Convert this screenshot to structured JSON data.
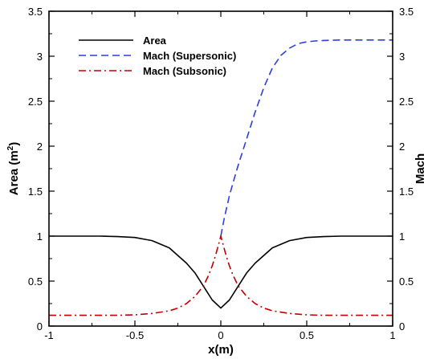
{
  "chart_data": {
    "type": "line",
    "xlabel": "x(m)",
    "ylabel_left": "Area (m",
    "ylabel_left_sup": "2",
    "ylabel_left_end": ")",
    "ylabel_right": "Mach",
    "xlim": [
      -1,
      1
    ],
    "ylim_left": [
      0,
      3.5
    ],
    "ylim_right": [
      0,
      3.5
    ],
    "x_ticks": [
      -1,
      -0.5,
      0,
      0.5,
      1
    ],
    "x_tick_labels": [
      "-1",
      "-0.5",
      "0",
      "0.5",
      "1"
    ],
    "y_ticks": [
      0,
      0.5,
      1,
      1.5,
      2,
      2.5,
      3,
      3.5
    ],
    "y_tick_labels": [
      "0",
      "0.5",
      "1",
      "1.5",
      "2",
      "2.5",
      "3",
      "3.5"
    ],
    "grid": false,
    "legend_position": "top-left",
    "series": [
      {
        "name": "Area",
        "axis": "left",
        "style": "solid",
        "color": "#000000",
        "x": [
          -1,
          -0.7,
          -0.6,
          -0.5,
          -0.4,
          -0.3,
          -0.2,
          -0.15,
          -0.1,
          -0.05,
          0,
          0.05,
          0.1,
          0.15,
          0.2,
          0.3,
          0.4,
          0.5,
          0.6,
          0.7,
          1
        ],
        "y": [
          1.0,
          1.0,
          0.995,
          0.985,
          0.95,
          0.87,
          0.7,
          0.59,
          0.44,
          0.29,
          0.2,
          0.29,
          0.44,
          0.59,
          0.7,
          0.87,
          0.95,
          0.985,
          0.995,
          1.0,
          1.0
        ]
      },
      {
        "name": "Mach (Supersonic)",
        "axis": "right",
        "style": "dashed",
        "color": "#2f3fd6",
        "x": [
          0,
          0.02,
          0.05,
          0.08,
          0.1,
          0.15,
          0.2,
          0.25,
          0.3,
          0.35,
          0.4,
          0.45,
          0.5,
          0.55,
          0.6,
          0.7,
          0.8,
          1
        ],
        "y": [
          1.0,
          1.2,
          1.45,
          1.65,
          1.78,
          2.08,
          2.38,
          2.65,
          2.87,
          3.01,
          3.09,
          3.14,
          3.16,
          3.17,
          3.175,
          3.18,
          3.18,
          3.18
        ]
      },
      {
        "name": "Mach (Subsonic)",
        "axis": "right",
        "style": "dashdot",
        "color": "#c00000",
        "x": [
          -1,
          -0.6,
          -0.5,
          -0.4,
          -0.3,
          -0.25,
          -0.2,
          -0.15,
          -0.1,
          -0.07,
          -0.05,
          -0.03,
          0,
          0.03,
          0.05,
          0.07,
          0.1,
          0.15,
          0.2,
          0.25,
          0.3,
          0.4,
          0.5,
          0.6,
          1
        ],
        "y": [
          0.12,
          0.12,
          0.125,
          0.14,
          0.17,
          0.2,
          0.25,
          0.33,
          0.45,
          0.57,
          0.67,
          0.79,
          1.0,
          0.79,
          0.67,
          0.57,
          0.45,
          0.33,
          0.25,
          0.2,
          0.17,
          0.14,
          0.125,
          0.12,
          0.12
        ]
      }
    ]
  }
}
